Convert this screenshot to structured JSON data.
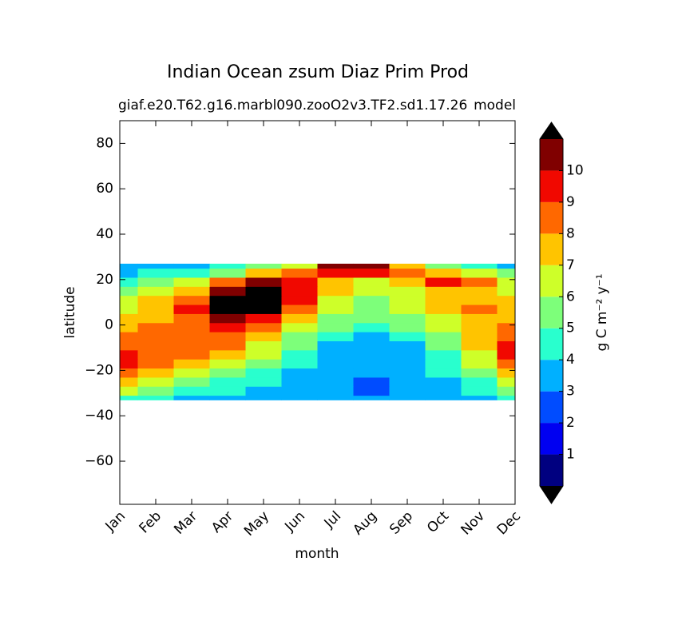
{
  "chart_data": {
    "type": "contour",
    "title": "Indian Ocean zsum Diaz Prim Prod",
    "subtitle": "giaf.e20.T62.g16.marbl090.zooO2v3.TF2.sd1.17.26",
    "subtitle_right": "model",
    "x_label": "month",
    "y_label": "latitude",
    "categories": [
      "Jan",
      "Feb",
      "Mar",
      "Apr",
      "May",
      "Jun",
      "Jul",
      "Aug",
      "Sep",
      "Oct",
      "Nov",
      "Dec"
    ],
    "y": [
      -33,
      -29,
      -25,
      -21,
      -17,
      -13,
      -9,
      -5,
      -1,
      3,
      7,
      11,
      15,
      19,
      23,
      27
    ],
    "z": [
      [
        4.5,
        4,
        3.5,
        3.5,
        3.5,
        3.5,
        3.5,
        3.5,
        3.5,
        3.5,
        3.5,
        4
      ],
      [
        6,
        5,
        4.5,
        4,
        3.5,
        3.5,
        3.5,
        2.5,
        3,
        3.5,
        4,
        5.5
      ],
      [
        7.5,
        6.5,
        5.5,
        4.5,
        4,
        3.5,
        3.5,
        2.5,
        3,
        3.5,
        4.5,
        6.5
      ],
      [
        8.5,
        7.5,
        6.5,
        5.5,
        4.5,
        3.5,
        3.5,
        3.5,
        3.5,
        4,
        5.5,
        7.5
      ],
      [
        9.5,
        8.5,
        7.5,
        6.5,
        5,
        4,
        3.5,
        3.5,
        3.5,
        4.5,
        6,
        8.5
      ],
      [
        9.5,
        8.5,
        8.5,
        7.5,
        6,
        4.5,
        3.5,
        3.5,
        3.5,
        4.5,
        6.5,
        9.5
      ],
      [
        8.5,
        8.5,
        8.5,
        8,
        6.5,
        5,
        3.5,
        3.5,
        3.5,
        5,
        7,
        9
      ],
      [
        8.5,
        8.5,
        8.5,
        8.5,
        7,
        5.5,
        4.5,
        3.5,
        4,
        5.5,
        7.5,
        8.5
      ],
      [
        7.5,
        8,
        8.5,
        9,
        8,
        6.5,
        5,
        4.5,
        5,
        6.5,
        7.5,
        8
      ],
      [
        7,
        7.5,
        8.5,
        10.5,
        9.5,
        7,
        5.5,
        5,
        5.5,
        6.5,
        7.5,
        7.5
      ],
      [
        6.5,
        7.5,
        9,
        11.5,
        11.5,
        8.5,
        6,
        5.5,
        6,
        7,
        8.5,
        7.5
      ],
      [
        6,
        7,
        8.5,
        11.5,
        11.5,
        9,
        6.5,
        5.5,
        6,
        7,
        7.5,
        7
      ],
      [
        5,
        6,
        7.5,
        10.5,
        11.5,
        9.5,
        7,
        6.5,
        6.5,
        7,
        7,
        6.5
      ],
      [
        4.5,
        5,
        6,
        8,
        10,
        9,
        7.5,
        6.5,
        7.5,
        9,
        8,
        6
      ],
      [
        3.5,
        4,
        4.5,
        5.5,
        7,
        8,
        9.5,
        9.5,
        8,
        7,
        6,
        5
      ],
      [
        3,
        3,
        3.5,
        4,
        5,
        6.5,
        10.5,
        10,
        7,
        5,
        4,
        3.5
      ]
    ],
    "ylim": [
      -79,
      90
    ],
    "yticks": [
      {
        "value": -60,
        "label": "−60"
      },
      {
        "value": -40,
        "label": "−40"
      },
      {
        "value": -20,
        "label": "−20"
      },
      0,
      20,
      40,
      60,
      80
    ],
    "levels": [
      0,
      1,
      2,
      3,
      4,
      5,
      6,
      7,
      8,
      9,
      10,
      11
    ],
    "colors": [
      "#000080",
      "#0000f1",
      "#004cff",
      "#00b0ff",
      "#29ffce",
      "#7dff7a",
      "#ceff29",
      "#ffc400",
      "#ff6800",
      "#f10800",
      "#800000"
    ],
    "under_color": "#000000",
    "over_color": "#000000",
    "colorbar_ticks": [
      1,
      2,
      3,
      4,
      5,
      6,
      7,
      8,
      9,
      10
    ],
    "colorbar_label": "g C m⁻² y⁻¹"
  }
}
